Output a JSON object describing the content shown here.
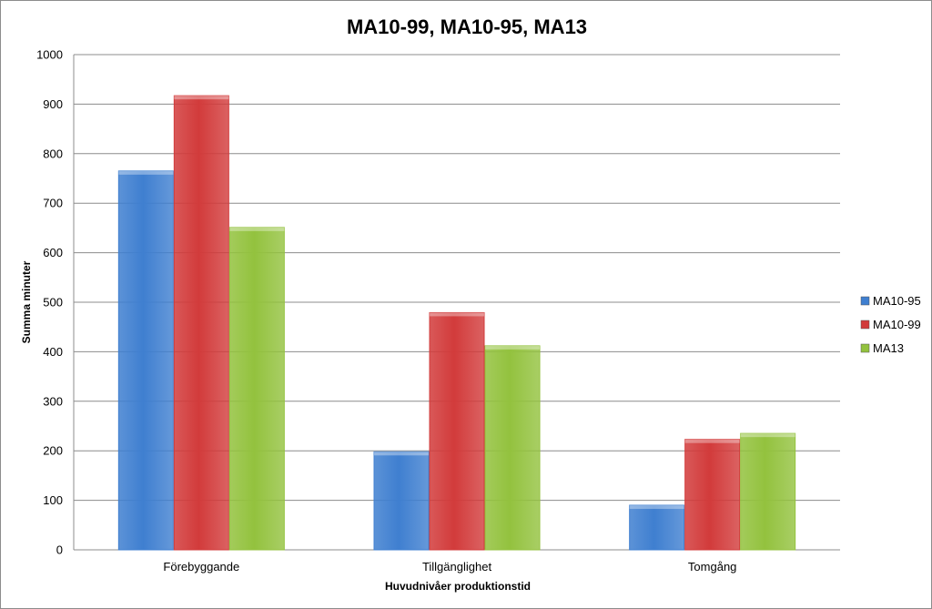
{
  "chart_data": {
    "type": "bar",
    "title": "MA10-99, MA10-95, MA13",
    "xlabel": "Huvudnivåer produktionstid",
    "ylabel": "Summa minuter",
    "categories": [
      "Förebyggande",
      "Tillgänglighet",
      "Tomgång"
    ],
    "series": [
      {
        "name": "MA10-95",
        "values": [
          765,
          198,
          90
        ],
        "color": "#3f7fd0"
      },
      {
        "name": "MA10-99",
        "values": [
          917,
          479,
          223
        ],
        "color": "#d23b3b"
      },
      {
        "name": "MA13",
        "values": [
          651,
          412,
          235
        ],
        "color": "#93c23e"
      }
    ],
    "ylim": [
      0,
      1000
    ],
    "yticks": [
      0,
      100,
      200,
      300,
      400,
      500,
      600,
      700,
      800,
      900,
      1000
    ],
    "grid": true,
    "legend_position": "right"
  }
}
